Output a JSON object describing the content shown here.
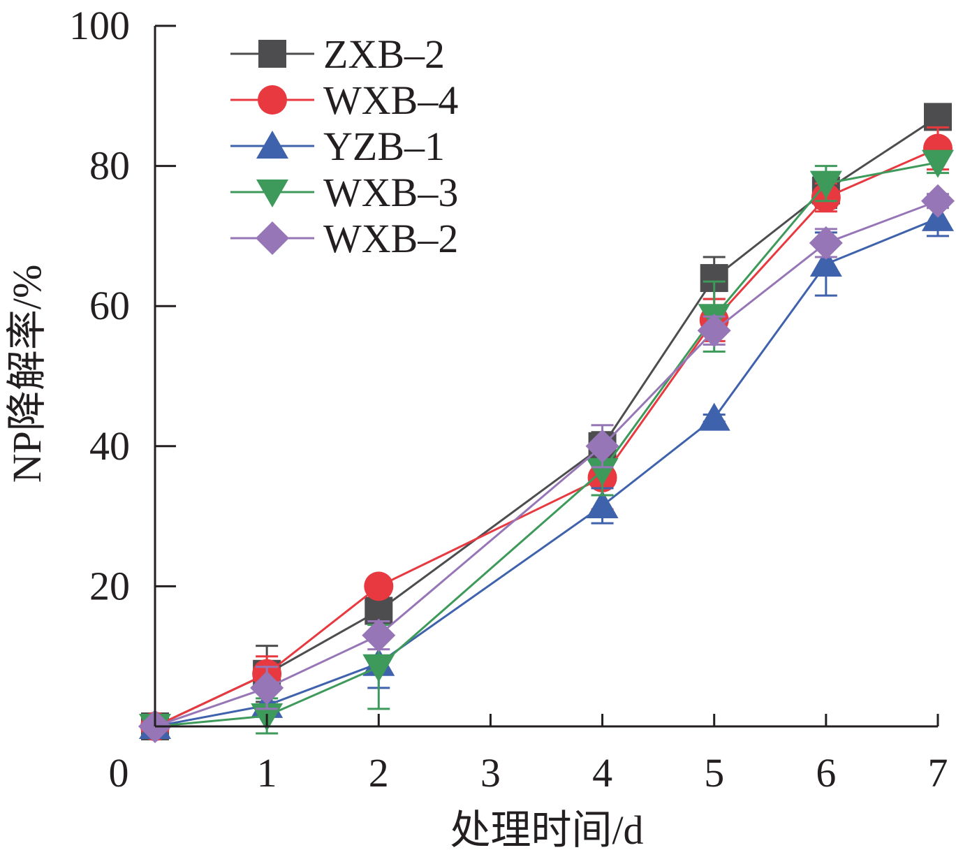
{
  "chart_data": {
    "type": "line",
    "xlabel": "处理时间/d",
    "ylabel": "NP降解率/%",
    "xlim": [
      0,
      7
    ],
    "ylim": [
      0,
      100
    ],
    "x_ticks": [
      "0",
      "1",
      "2",
      "3",
      "4",
      "5",
      "6",
      "7"
    ],
    "y_ticks": [
      "20",
      "40",
      "60",
      "80",
      "100"
    ],
    "grid": false,
    "legend_position": "top-left",
    "x": [
      0,
      1,
      2,
      4,
      5,
      6,
      7
    ],
    "series": [
      {
        "name": "ZXB–2",
        "color": "#4d4d4f",
        "marker": "square",
        "values": [
          0,
          7.5,
          16.5,
          40,
          64,
          76.5,
          87
        ],
        "errors": [
          0,
          4,
          1.5,
          2,
          3,
          2.5,
          1
        ]
      },
      {
        "name": "WXB–4",
        "color": "#e7393f",
        "marker": "circle",
        "values": [
          0,
          7.5,
          20,
          35.5,
          58,
          75.5,
          82.5
        ],
        "errors": [
          0,
          2.5,
          1,
          4.5,
          3,
          2,
          3
        ]
      },
      {
        "name": "YZB–1",
        "color": "#3f62ad",
        "marker": "triangle-up",
        "values": [
          0,
          3,
          9,
          31.5,
          44,
          66,
          72.5
        ],
        "errors": [
          0,
          3,
          3.5,
          2.5,
          0.5,
          4.5,
          2.5
        ]
      },
      {
        "name": "WXB–3",
        "color": "#3d9a5a",
        "marker": "triangle-down",
        "values": [
          0,
          1.5,
          8.5,
          36.5,
          58.5,
          77.5,
          80.5
        ],
        "errors": [
          0,
          2.5,
          6,
          3.5,
          5,
          2.5,
          1.5
        ]
      },
      {
        "name": "WXB–2",
        "color": "#9676b6",
        "marker": "diamond",
        "values": [
          0,
          5.5,
          13,
          40,
          56.5,
          69,
          75
        ],
        "errors": [
          0,
          3,
          2,
          3,
          2,
          2,
          1
        ]
      }
    ]
  }
}
